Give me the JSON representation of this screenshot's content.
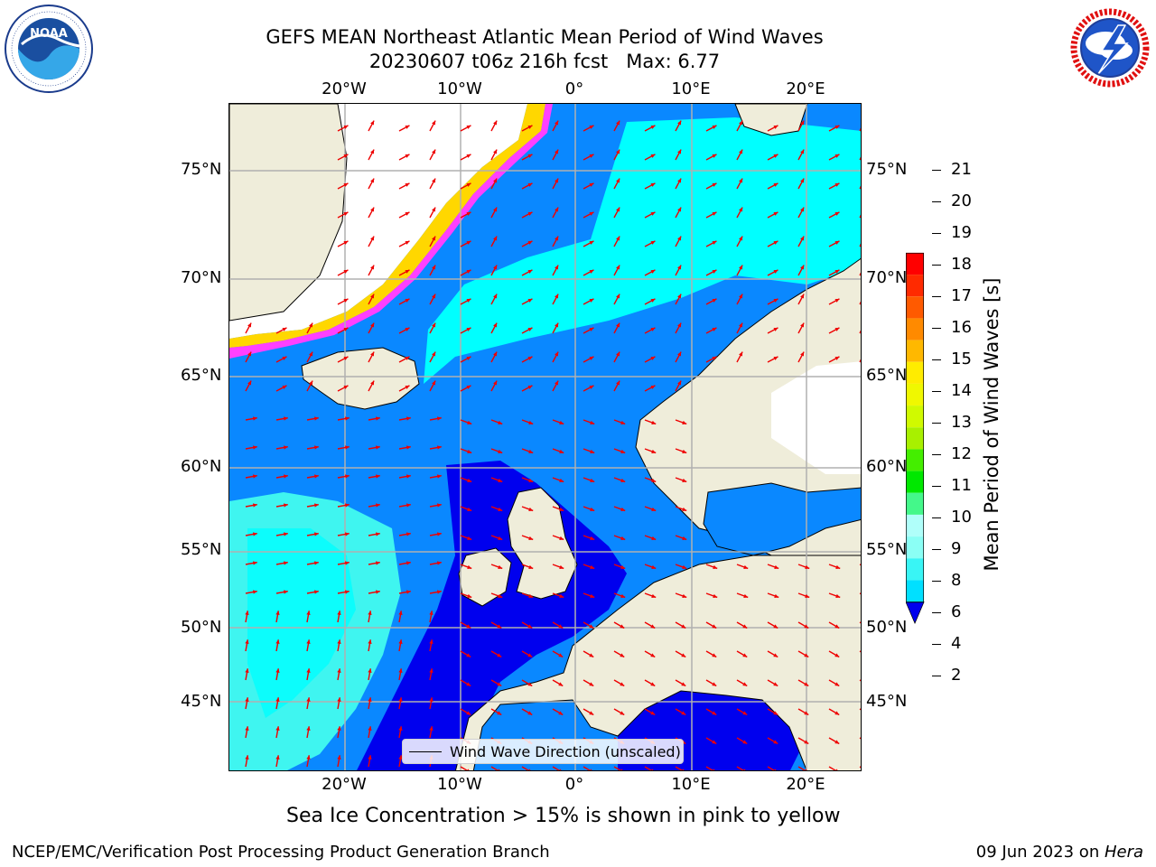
{
  "header": {
    "title_line1": "GEFS MEAN Northeast Atlantic Mean Period of Wind Waves",
    "title_line2": "20230607 t06z 216h fcst   Max: 6.77"
  },
  "logos": {
    "left": {
      "name": "NOAA",
      "ring_text": "NATIONAL OCEANIC AND ATMOSPHERIC ADMINISTRATION · U.S. DEPARTMENT OF COMMERCE"
    },
    "right": {
      "name": "NATIONAL WEATHER SERVICE"
    }
  },
  "map": {
    "lon_labels": [
      "20°W",
      "10°W",
      "0°",
      "10°E",
      "20°E"
    ],
    "lat_labels": [
      "75°N",
      "70°N",
      "65°N",
      "60°N",
      "55°N",
      "50°N",
      "45°N"
    ],
    "lon_range": [
      -30,
      25
    ],
    "lat_range": [
      41,
      78
    ],
    "gridlines": true,
    "legend": {
      "label": "Wind Wave Direction (unscaled)",
      "position": "bottom-center"
    },
    "colors": {
      "ocean_low": "#0a88ff",
      "ocean_very_low": "#0000ee",
      "ocean_mid": "#00ffff",
      "ocean_light": "#3ff5f0",
      "land": "#efedda",
      "ice_white": "#ffffff",
      "ice_edge_yellow": "#ffd700",
      "ice_edge_pink": "#ff40ff",
      "arrow": "#ee0000"
    }
  },
  "colorbar": {
    "label": "Mean Period of Wind Waves [s]",
    "ticks": [
      "2",
      "4",
      "6",
      "8",
      "9",
      "10",
      "11",
      "12",
      "13",
      "14",
      "15",
      "16",
      "17",
      "18",
      "19",
      "20",
      "21"
    ],
    "colors": [
      "#0a78ff",
      "#00e0ff",
      "#39f5f5",
      "#8bfff5",
      "#b0fffa",
      "#44f88a",
      "#00e800",
      "#44ee00",
      "#a8f000",
      "#d0fa00",
      "#f0f800",
      "#ffec00",
      "#ffb800",
      "#ff8a00",
      "#ff5a00",
      "#ff2a00",
      "#ff0000"
    ],
    "extend": "min"
  },
  "notes": {
    "sea_ice": "Sea Ice Concentration > 15% is shown in pink to yellow"
  },
  "footer": {
    "left": "NCEP/EMC/Verification Post Processing Product Generation Branch",
    "right_date": "09 Jun 2023 on ",
    "right_host": "Hera"
  }
}
